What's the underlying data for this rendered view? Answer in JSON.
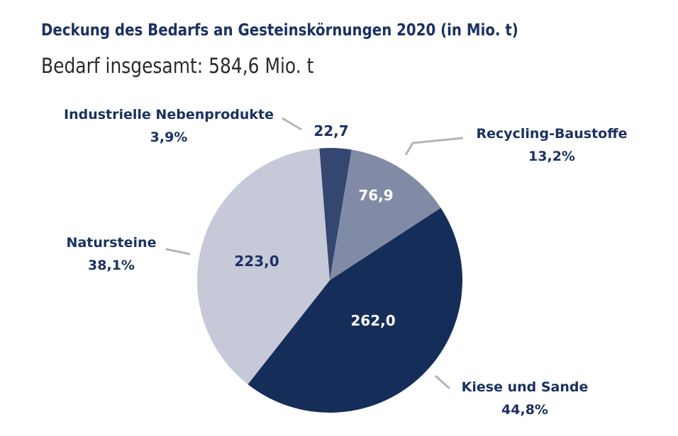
{
  "header": {
    "title": "Deckung des Bedarfs an Gesteinskörnungen 2020 (in Mio. t)",
    "subtitle": "Bedarf insgesamt: 584,6 Mio. t"
  },
  "chart_data": {
    "type": "pie",
    "title": "Deckung des Bedarfs an Gesteinskörnungen 2020 (in Mio. t)",
    "subtitle": "Bedarf insgesamt: 584,6 Mio. t",
    "slices": [
      {
        "name": "Industrielle Nebenprodukte",
        "value": 22.7,
        "value_label": "22,7",
        "percent_label": "3,9%",
        "color": "#344770",
        "value_text_color": "#1b3160"
      },
      {
        "name": "Recycling-Baustoffe",
        "value": 76.9,
        "value_label": "76,9",
        "percent_label": "13,2%",
        "color": "#828ba6",
        "value_text_color": "#ffffff"
      },
      {
        "name": "Kiese und Sande",
        "value": 262.0,
        "value_label": "262,0",
        "percent_label": "44,8%",
        "color": "#152d59",
        "value_text_color": "#ffffff"
      },
      {
        "name": "Natursteine",
        "value": 223.0,
        "value_label": "223,0",
        "percent_label": "38,1%",
        "color": "#c6c9d8",
        "value_text_color": "#1b3160"
      }
    ],
    "label_color": "#1b3160",
    "leader_color": "#b4b4b4",
    "start_angle_deg": -4.5,
    "direction": "clockwise"
  }
}
